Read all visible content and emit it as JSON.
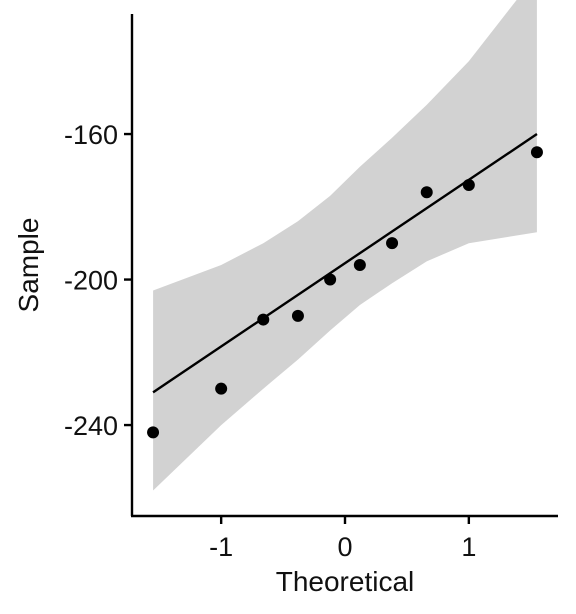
{
  "chart_data": {
    "type": "scatter",
    "title": "",
    "xlabel": "Theoretical",
    "ylabel": "Sample",
    "xlim": [
      -1.72,
      1.72
    ],
    "ylim": [
      -265,
      -127
    ],
    "grid": false,
    "x_ticks": [
      -1,
      0,
      1
    ],
    "x_tick_labels": [
      "-1",
      "0",
      "1"
    ],
    "y_ticks": [
      -160,
      -200,
      -240
    ],
    "y_tick_labels": [
      "-160",
      "-200",
      "-240"
    ],
    "points": {
      "x": [
        -1.55,
        -1.0,
        -0.66,
        -0.38,
        -0.12,
        0.12,
        0.38,
        0.66,
        1.0,
        1.55
      ],
      "y": [
        -242,
        -230,
        -211,
        -210,
        -200,
        -196,
        -190,
        -176,
        -174,
        -165
      ]
    },
    "reference_line": {
      "x": [
        -1.55,
        1.55
      ],
      "y": [
        -231,
        -160
      ]
    },
    "confidence_band": {
      "x": [
        -1.55,
        -1.0,
        -0.66,
        -0.38,
        -0.12,
        0.12,
        0.38,
        0.66,
        1.0,
        1.55
      ],
      "upper": [
        -203,
        -196,
        -190,
        -184,
        -177,
        -169,
        -161,
        -152,
        -140,
        -116
      ],
      "lower": [
        -258,
        -240,
        -230,
        -222,
        -214,
        -207,
        -201,
        -195,
        -190,
        -187
      ]
    },
    "colors": {
      "points": "#000000",
      "line": "#000000",
      "band": "#d2d2d2"
    }
  }
}
